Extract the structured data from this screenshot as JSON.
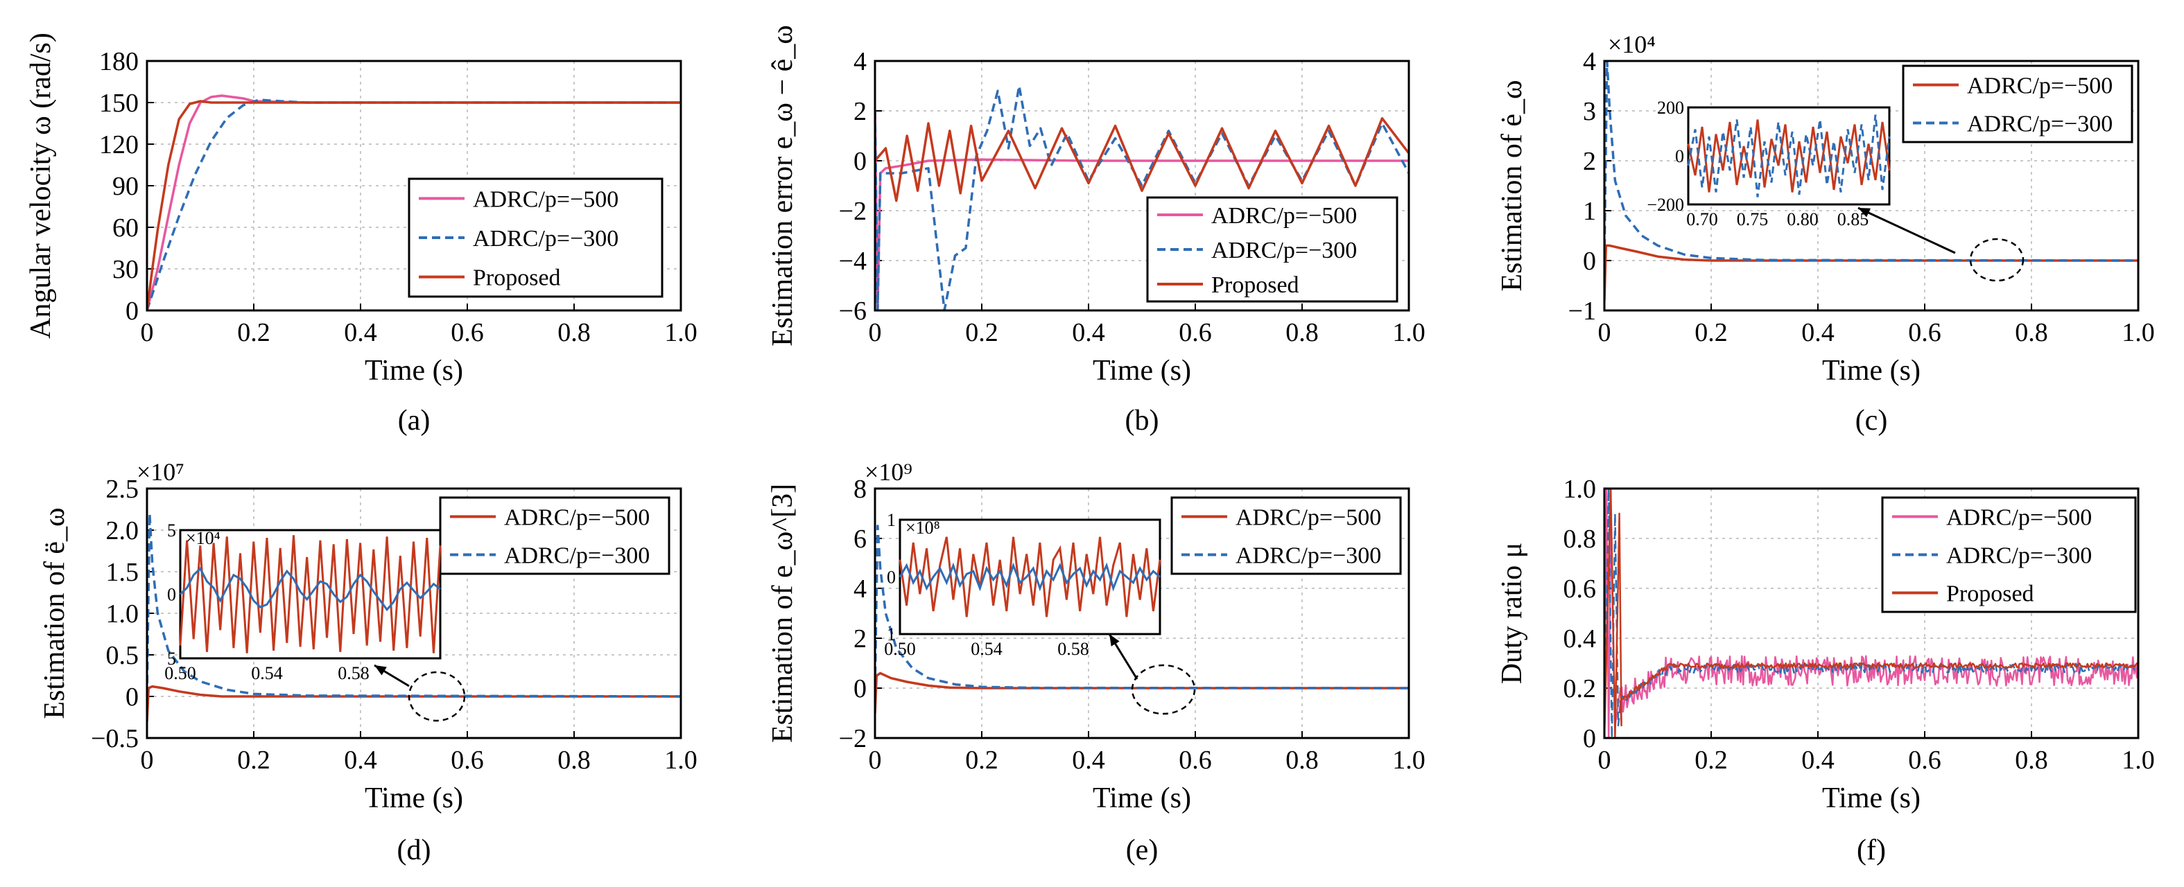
{
  "colors": {
    "pink": "#e8589f",
    "blue": "#2f6db5",
    "red": "#c43a1e"
  },
  "chart_data": [
    {
      "id": "a",
      "type": "line",
      "caption": "(a)",
      "xlabel": "Time (s)",
      "ylabel": "Angular velocity ω (rad/s)",
      "xlim": [
        0,
        1.0
      ],
      "ylim": [
        0,
        180
      ],
      "xticks": [
        "0",
        "0.2",
        "0.4",
        "0.6",
        "0.8",
        "1.0"
      ],
      "yticks": [
        "0",
        "30",
        "60",
        "90",
        "120",
        "150",
        "180"
      ],
      "grid": true,
      "legend": "center-right",
      "series": [
        {
          "name": "ADRC/p=−500",
          "color": "pink",
          "dash": false,
          "x": [
            0,
            0.02,
            0.04,
            0.06,
            0.08,
            0.1,
            0.12,
            0.14,
            0.16,
            0.18,
            0.2,
            0.3,
            1.0
          ],
          "y": [
            0,
            30,
            68,
            105,
            135,
            150,
            154,
            155,
            154,
            153,
            151,
            150,
            150
          ]
        },
        {
          "name": "ADRC/p=−300",
          "color": "blue",
          "dash": true,
          "x": [
            0,
            0.03,
            0.06,
            0.09,
            0.12,
            0.15,
            0.18,
            0.21,
            0.25,
            0.3,
            1.0
          ],
          "y": [
            0,
            35,
            68,
            98,
            122,
            139,
            148,
            152,
            151,
            150,
            150
          ]
        },
        {
          "name": "Proposed",
          "color": "red",
          "dash": false,
          "x": [
            0,
            0.01,
            0.02,
            0.04,
            0.06,
            0.08,
            0.1,
            0.12,
            0.15,
            0.2,
            1.0
          ],
          "y": [
            0,
            30,
            58,
            105,
            138,
            149,
            151,
            150,
            150,
            150,
            150
          ]
        }
      ]
    },
    {
      "id": "b",
      "type": "line",
      "caption": "(b)",
      "xlabel": "Time (s)",
      "ylabel": "Estimation error e_ω − ê_ω",
      "xlim": [
        0,
        1.0
      ],
      "ylim": [
        -6,
        4
      ],
      "xticks": [
        "0",
        "0.2",
        "0.4",
        "0.6",
        "0.8",
        "1.0"
      ],
      "yticks": [
        "−6",
        "−4",
        "−2",
        "0",
        "2",
        "4"
      ],
      "grid": true,
      "legend": "bottom-right",
      "series": [
        {
          "name": "ADRC/p=−500",
          "color": "pink",
          "dash": false,
          "x": [
            0,
            0.005,
            0.01,
            0.02,
            0.05,
            0.1,
            0.2,
            0.4,
            0.6,
            0.8,
            1.0
          ],
          "y": [
            2,
            -6,
            -0.5,
            -0.3,
            -0.2,
            0,
            0.05,
            0,
            0,
            0,
            0
          ]
        },
        {
          "name": "ADRC/p=−300",
          "color": "blue",
          "dash": true,
          "x": [
            0,
            0.005,
            0.01,
            0.05,
            0.1,
            0.13,
            0.15,
            0.17,
            0.19,
            0.21,
            0.23,
            0.25,
            0.27,
            0.29,
            0.31,
            0.33,
            0.36,
            0.4,
            0.45,
            0.5,
            0.55,
            0.6,
            0.65,
            0.7,
            0.75,
            0.8,
            0.85,
            0.9,
            0.95,
            1.0
          ],
          "y": [
            2,
            -6,
            -0.5,
            -0.5,
            -0.3,
            -6,
            -3.8,
            -3.5,
            0.2,
            1.2,
            2.8,
            0.5,
            3.0,
            0.6,
            1.3,
            -0.2,
            1.1,
            -0.8,
            0.9,
            -1.0,
            1.2,
            -0.9,
            1.1,
            -1.0,
            1.0,
            -0.8,
            1.2,
            -1.0,
            1.5,
            -0.5
          ]
        },
        {
          "name": "Proposed",
          "color": "red",
          "dash": false,
          "x": [
            0,
            0.02,
            0.04,
            0.06,
            0.08,
            0.1,
            0.12,
            0.14,
            0.16,
            0.18,
            0.2,
            0.25,
            0.3,
            0.35,
            0.4,
            0.45,
            0.5,
            0.55,
            0.6,
            0.65,
            0.7,
            0.75,
            0.8,
            0.85,
            0.9,
            0.95,
            1.0
          ],
          "y": [
            0,
            0.5,
            -1.6,
            1.0,
            -1.2,
            1.5,
            -1.0,
            1.2,
            -1.3,
            1.4,
            -0.8,
            1.2,
            -1.1,
            1.3,
            -0.9,
            1.4,
            -1.2,
            1.1,
            -1.0,
            1.3,
            -1.1,
            1.2,
            -0.9,
            1.4,
            -1.0,
            1.7,
            0.3
          ]
        }
      ]
    },
    {
      "id": "c",
      "type": "line",
      "caption": "(c)",
      "xlabel": "Time (s)",
      "ylabel": "Estimation of ė_ω",
      "multiplier": "×10⁴",
      "xlim": [
        0,
        1.0
      ],
      "ylim": [
        -1,
        4
      ],
      "xticks": [
        "0",
        "0.2",
        "0.4",
        "0.6",
        "0.8",
        "1.0"
      ],
      "yticks": [
        "−1",
        "0",
        "1",
        "2",
        "3",
        "4"
      ],
      "grid": true,
      "legend": "top-right",
      "series": [
        {
          "name": "ADRC/p=−500",
          "color": "red",
          "dash": false,
          "x": [
            0,
            0.003,
            0.01,
            0.03,
            0.06,
            0.1,
            0.15,
            0.2,
            1.0
          ],
          "y": [
            -0.8,
            0.3,
            0.3,
            0.25,
            0.18,
            0.08,
            0.02,
            0,
            0
          ]
        },
        {
          "name": "ADRC/p=−300",
          "color": "blue",
          "dash": true,
          "x": [
            0,
            0.005,
            0.01,
            0.02,
            0.04,
            0.07,
            0.1,
            0.15,
            0.2,
            0.3,
            1.0
          ],
          "y": [
            0,
            4.0,
            3.0,
            1.6,
            0.9,
            0.5,
            0.3,
            0.12,
            0.05,
            0.01,
            0
          ]
        }
      ],
      "inset": {
        "xlim": [
          0.7,
          0.9
        ],
        "ylim": [
          -200,
          200
        ],
        "xticks": [
          "0.70",
          "0.75",
          "0.80",
          "0.85"
        ],
        "yticks": [
          "−200",
          "0",
          "200"
        ],
        "series": [
          {
            "color": "red",
            "dash": false,
            "y": [
              50,
              -80,
              120,
              -150,
              90,
              -60,
              140,
              -120,
              40,
              -90,
              150,
              -130,
              70,
              -40,
              130,
              -150,
              60,
              -110,
              120,
              -70,
              100,
              -140,
              80,
              -30,
              130,
              -120,
              50,
              -100,
              140,
              -60
            ]
          },
          {
            "color": "blue",
            "dash": true,
            "y": [
              -40,
              110,
              -130,
              80,
              -150,
              100,
              -60,
              150,
              -90,
              120,
              -170,
              60,
              -110,
              140,
              -80,
              100,
              -160,
              90,
              -40,
              150,
              -120,
              60,
              -150,
              110,
              -70,
              130,
              -100,
              170,
              -140,
              80
            ]
          }
        ]
      }
    },
    {
      "id": "d",
      "type": "line",
      "caption": "(d)",
      "xlabel": "Time (s)",
      "ylabel": "Estimation of ë_ω",
      "multiplier": "×10⁷",
      "xlim": [
        0,
        1.0
      ],
      "ylim": [
        -0.5,
        2.5
      ],
      "xticks": [
        "0",
        "0.2",
        "0.4",
        "0.6",
        "0.8",
        "1.0"
      ],
      "yticks": [
        "−0.5",
        "0",
        "0.5",
        "1.0",
        "1.5",
        "2.0",
        "2.5"
      ],
      "grid": true,
      "legend": "top-right",
      "series": [
        {
          "name": "ADRC/p=−500",
          "color": "red",
          "dash": false,
          "x": [
            0,
            0.003,
            0.01,
            0.03,
            0.06,
            0.1,
            0.14,
            0.2,
            1.0
          ],
          "y": [
            -0.3,
            0.1,
            0.12,
            0.1,
            0.06,
            0.02,
            0,
            0,
            0
          ]
        },
        {
          "name": "ADRC/p=−300",
          "color": "blue",
          "dash": true,
          "x": [
            0,
            0.005,
            0.01,
            0.02,
            0.04,
            0.07,
            0.1,
            0.15,
            0.2,
            0.3,
            1.0
          ],
          "y": [
            0,
            2.2,
            1.6,
            1.0,
            0.55,
            0.3,
            0.18,
            0.08,
            0.03,
            0.01,
            0
          ]
        }
      ],
      "inset": {
        "xlim": [
          0.5,
          0.6
        ],
        "ylim": [
          -5,
          5
        ],
        "multiplier": "×10⁴",
        "xticks": [
          "0.50",
          "0.54",
          "0.58"
        ],
        "yticks": [
          "5",
          "0",
          "5"
        ],
        "series": [
          {
            "color": "red",
            "dash": false,
            "y": [
              -4.0,
              4.2,
              -3.5,
              3.8,
              -4.5,
              4.0,
              -2.8,
              4.5,
              -4.2,
              3.2,
              -4.6,
              4.1,
              -3.0,
              4.4,
              -4.4,
              3.6,
              -3.8,
              4.6,
              -4.1,
              2.9,
              -4.3,
              4.2,
              -3.4,
              3.9,
              -4.5,
              4.3,
              -3.1,
              4.0,
              -4.0,
              3.5,
              -3.7,
              4.5,
              -4.4,
              3.0,
              -4.2,
              4.1,
              -3.3,
              4.4,
              -4.6,
              3.8
            ]
          },
          {
            "color": "blue",
            "dash": false,
            "y": [
              0,
              0.5,
              1.5,
              2.0,
              1.0,
              0.5,
              -0.5,
              0.5,
              1.5,
              1.2,
              0.5,
              -0.5,
              -1.0,
              -0.8,
              0,
              1.0,
              1.8,
              1.2,
              0.2,
              -0.4,
              0.3,
              1.0,
              0.8,
              0,
              -0.6,
              -0.2,
              0.8,
              1.5,
              1.0,
              0.2,
              -0.5,
              -1.2,
              -0.6,
              0.4,
              0.9,
              0.3,
              -0.3,
              0.2,
              0.8,
              0.4
            ]
          }
        ]
      }
    },
    {
      "id": "e",
      "type": "line",
      "caption": "(e)",
      "xlabel": "Time (s)",
      "ylabel": "Estimation of e_ω^[3]",
      "multiplier": "×10⁹",
      "xlim": [
        0,
        1.0
      ],
      "ylim": [
        -2,
        8
      ],
      "xticks": [
        "0",
        "0.2",
        "0.4",
        "0.6",
        "0.8",
        "1.0"
      ],
      "yticks": [
        "−2",
        "0",
        "2",
        "4",
        "6",
        "8"
      ],
      "grid": true,
      "legend": "top-right",
      "series": [
        {
          "name": "ADRC/p=−500",
          "color": "red",
          "dash": false,
          "x": [
            0,
            0.003,
            0.01,
            0.03,
            0.06,
            0.1,
            0.14,
            0.2,
            1.0
          ],
          "y": [
            -1.0,
            0.5,
            0.6,
            0.4,
            0.25,
            0.1,
            0.02,
            0,
            0
          ]
        },
        {
          "name": "ADRC/p=−300",
          "color": "blue",
          "dash": true,
          "x": [
            0,
            0.005,
            0.01,
            0.02,
            0.04,
            0.07,
            0.1,
            0.15,
            0.2,
            0.3,
            1.0
          ],
          "y": [
            0,
            6.5,
            4.8,
            3.0,
            1.6,
            0.8,
            0.4,
            0.15,
            0.05,
            0.01,
            0
          ]
        }
      ],
      "inset": {
        "xlim": [
          0.5,
          0.6
        ],
        "ylim": [
          -1,
          1
        ],
        "multiplier": "×10⁸",
        "xticks": [
          "0.50",
          "0.54",
          "0.58"
        ],
        "yticks": [
          "1",
          "0",
          "1"
        ],
        "series": [
          {
            "color": "red",
            "dash": false,
            "y": [
              0.3,
              -0.5,
              0.6,
              -0.3,
              0.5,
              -0.6,
              0.2,
              0.7,
              -0.4,
              0.5,
              -0.7,
              0.4,
              -0.2,
              0.6,
              -0.5,
              0.3,
              -0.6,
              0.7,
              -0.3,
              0.4,
              -0.5,
              0.6,
              -0.7,
              0.3,
              0.5,
              -0.4,
              0.6,
              -0.6,
              0.4,
              -0.3,
              0.7,
              -0.5,
              0.2,
              0.6,
              -0.7,
              0.4,
              -0.4,
              0.5,
              -0.6,
              0.3
            ]
          },
          {
            "color": "blue",
            "dash": false,
            "y": [
              0,
              0.2,
              -0.1,
              0.1,
              -0.2,
              0,
              0.15,
              -0.1,
              0.2,
              -0.15,
              0.05,
              0.1,
              -0.2,
              0.15,
              -0.05,
              0.1,
              -0.15,
              0.2,
              -0.1,
              0,
              0.15,
              -0.2,
              0.1,
              -0.05,
              0.2,
              -0.1,
              0.05,
              0.15,
              -0.15,
              0.1,
              -0.05,
              0.2,
              -0.2,
              0.1,
              0,
              -0.1,
              0.15,
              -0.05,
              0.1,
              0
            ]
          }
        ]
      }
    },
    {
      "id": "f",
      "type": "line",
      "caption": "(f)",
      "xlabel": "Time (s)",
      "ylabel": "Duty ratio μ",
      "xlim": [
        0,
        1.0
      ],
      "ylim": [
        0,
        1.0
      ],
      "xticks": [
        "0",
        "0.2",
        "0.4",
        "0.6",
        "0.8",
        "1.0"
      ],
      "yticks": [
        "0",
        "0.2",
        "0.4",
        "0.6",
        "0.8",
        "1.0"
      ],
      "grid": true,
      "legend": "top-right",
      "series": [
        {
          "name": "ADRC/p=−500",
          "color": "pink",
          "dash": false,
          "mean": 0.27,
          "noise": 0.06,
          "spike_to": 1.0
        },
        {
          "name": "ADRC/p=−300",
          "color": "blue",
          "dash": true,
          "mean": 0.28,
          "noise": 0.02,
          "spike_to": 1.0
        },
        {
          "name": "Proposed",
          "color": "red",
          "dash": false,
          "mean": 0.29,
          "noise": 0.01,
          "spike_to": 1.0
        }
      ]
    }
  ]
}
